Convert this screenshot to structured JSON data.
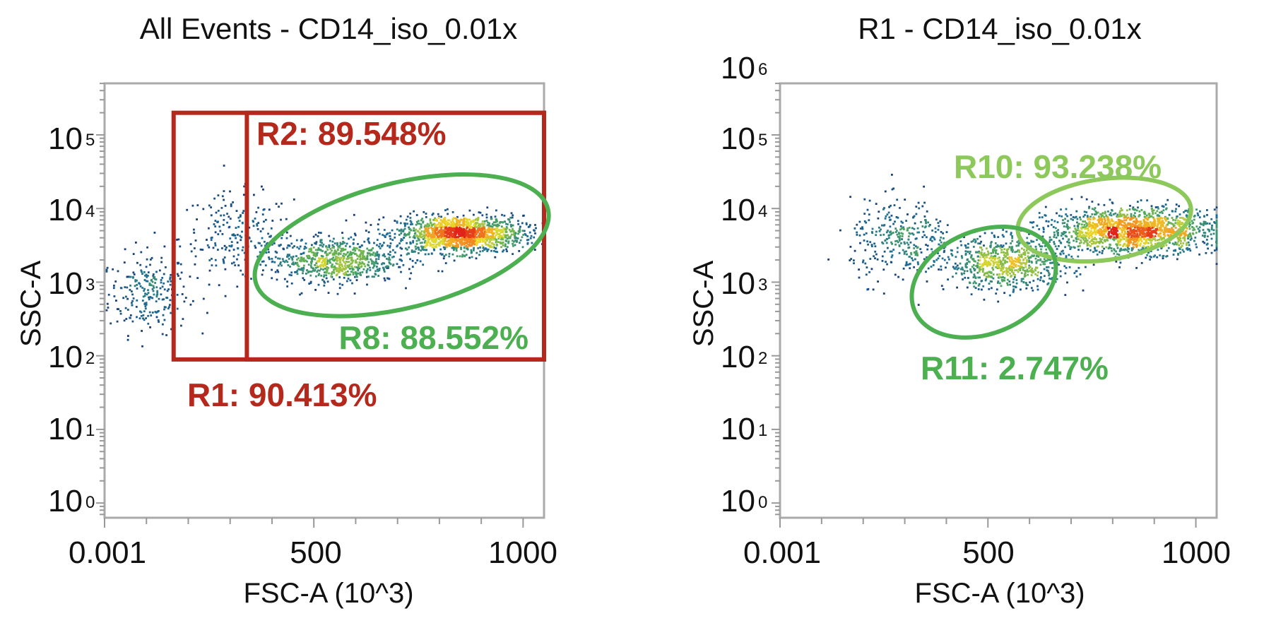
{
  "colors": {
    "gate_red": "#b5281c",
    "gate_green": "#4caf50",
    "gate_light_green": "#8dc95a",
    "frame": "#aaaaaa"
  },
  "chart_data": [
    {
      "type": "scatter",
      "title": "All Events - CD14_iso_0.01x",
      "xlabel": "FSC-A (10^3)",
      "ylabel": "SSC-A",
      "x_scale": "linear",
      "y_scale": "log",
      "xlim": [
        0,
        1050
      ],
      "ylim_log10": [
        -0.2,
        5.7
      ],
      "x_ticks": [
        "0.001",
        "500",
        "1000"
      ],
      "y_ticks": [
        {
          "base": "10",
          "exp": "0"
        },
        {
          "base": "10",
          "exp": "1"
        },
        {
          "base": "10",
          "exp": "2"
        },
        {
          "base": "10",
          "exp": "3"
        },
        {
          "base": "10",
          "exp": "4"
        },
        {
          "base": "10",
          "exp": "5"
        }
      ],
      "populations": [
        {
          "x": [
            10,
            200
          ],
          "y_log10": [
            2.3,
            3.4
          ],
          "weight": 0.09
        },
        {
          "x": [
            180,
            450
          ],
          "y_log10": [
            3.0,
            4.2
          ],
          "weight": 0.08
        },
        {
          "x": [
            700,
            1000
          ],
          "y_log10": [
            3.4,
            3.9
          ],
          "weight": 0.55
        },
        {
          "x": [
            400,
            700
          ],
          "y_log10": [
            3.0,
            3.6
          ],
          "weight": 0.28
        }
      ],
      "gates": [
        {
          "name": "R1",
          "label": "R1: 90.413%",
          "shape": "rectangle",
          "color": "gate_red",
          "x": [
            165,
            1050
          ],
          "y_log10": [
            1.95,
            5.3
          ]
        },
        {
          "name": "R2",
          "label": "R2: 89.548%",
          "shape": "rectangle",
          "color": "gate_red",
          "x": [
            340,
            1050
          ],
          "y_log10": [
            1.95,
            5.3
          ]
        },
        {
          "name": "R8",
          "label": "R8: 88.552%",
          "shape": "ellipse",
          "color": "gate_green",
          "cx": 710,
          "cy_log10": 3.5,
          "rx": 360,
          "ry_log10": 0.85,
          "angle_deg": -14
        }
      ]
    },
    {
      "type": "scatter",
      "title": "R1 - CD14_iso_0.01x",
      "xlabel": "FSC-A (10^3)",
      "ylabel": "SSC-A",
      "x_scale": "linear",
      "y_scale": "log",
      "xlim": [
        0,
        1050
      ],
      "ylim_log10": [
        -0.2,
        5.7
      ],
      "x_ticks": [
        "0.001",
        "500",
        "1000"
      ],
      "y_ticks": [
        {
          "base": "10",
          "exp": "0"
        },
        {
          "base": "10",
          "exp": "1"
        },
        {
          "base": "10",
          "exp": "2"
        },
        {
          "base": "10",
          "exp": "3"
        },
        {
          "base": "10",
          "exp": "4"
        },
        {
          "base": "10",
          "exp": "5"
        },
        {
          "base": "10",
          "exp": "6"
        }
      ],
      "populations": [
        {
          "x": [
            170,
            420
          ],
          "y_log10": [
            3.0,
            4.1
          ],
          "weight": 0.12
        },
        {
          "x": [
            650,
            1050
          ],
          "y_log10": [
            3.4,
            4.0
          ],
          "weight": 0.6
        },
        {
          "x": [
            400,
            700
          ],
          "y_log10": [
            2.9,
            3.6
          ],
          "weight": 0.28
        }
      ],
      "gates": [
        {
          "name": "R10",
          "label": "R10: 93.238%",
          "shape": "ellipse",
          "color": "gate_light_green",
          "cx": 780,
          "cy_log10": 3.85,
          "rx": 210,
          "ry_log10": 0.55,
          "angle_deg": -8
        },
        {
          "name": "R11",
          "label": "R11: 2.747%",
          "shape": "ellipse",
          "color": "gate_green",
          "cx": 490,
          "cy_log10": 3.0,
          "rx": 180,
          "ry_log10": 0.7,
          "angle_deg": -22
        }
      ]
    }
  ]
}
